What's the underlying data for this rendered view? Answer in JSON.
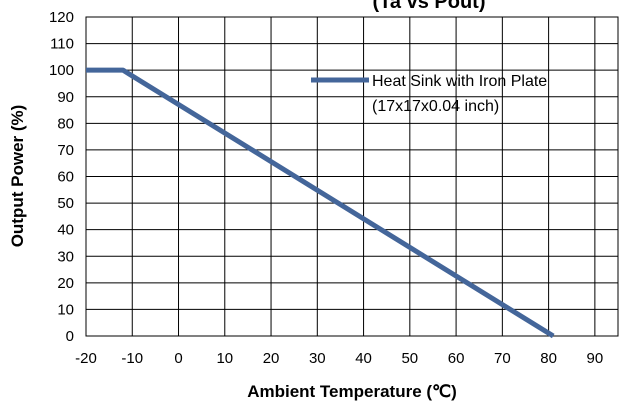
{
  "chart_data": {
    "type": "line",
    "title": "(Ta vs Pout)",
    "xlabel": "Ambient Temperature (℃)",
    "ylabel": "Output Power (%)",
    "xlim": [
      -20,
      95
    ],
    "ylim": [
      0,
      120
    ],
    "x_ticks": [
      -20,
      -10,
      0,
      10,
      20,
      30,
      40,
      50,
      60,
      70,
      80,
      90
    ],
    "y_ticks": [
      0,
      10,
      20,
      30,
      40,
      50,
      60,
      70,
      80,
      90,
      100,
      110,
      120
    ],
    "grid": true,
    "legend_position": "top-right",
    "series": [
      {
        "name": "Heat Sink with Iron Plate\n(17x17x0.04 inch)",
        "color": "#44669a",
        "x": [
          -20,
          -12,
          81
        ],
        "y": [
          100,
          100,
          0
        ]
      }
    ]
  }
}
